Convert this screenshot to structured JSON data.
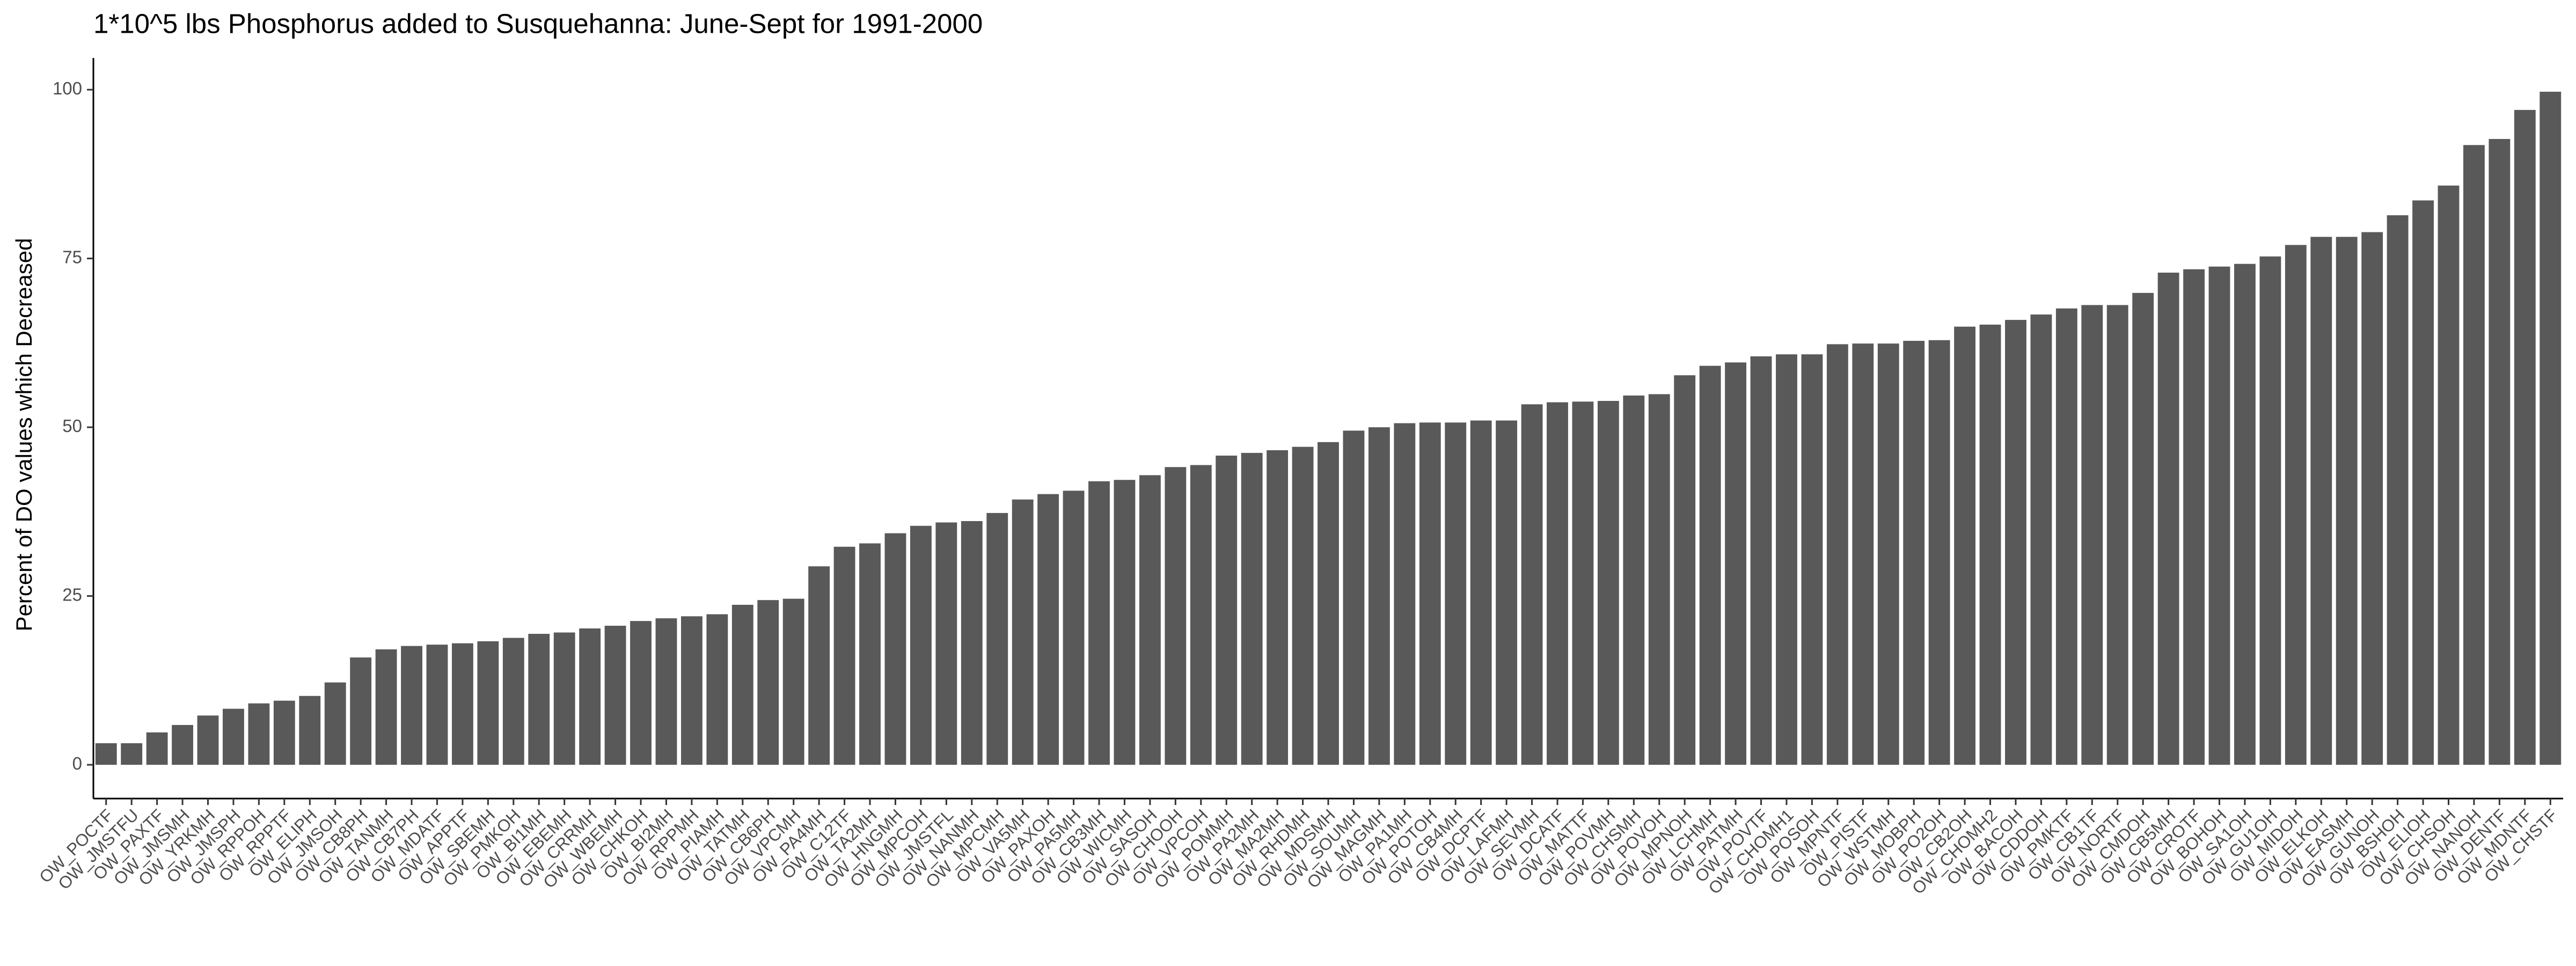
{
  "chart_data": {
    "type": "bar",
    "title": "1*10^5 lbs Phosphorus added to Susquehanna: June-Sept for 1991-2000",
    "y_label": "Percent of DO values which Decreased",
    "categories": [
      "OW_POCTF",
      "OW_JMSTFU",
      "OW_PAXTF",
      "OW_JMSMH",
      "OW_YRKMH",
      "OW_JMSPH",
      "OW_RPPOH",
      "OW_RPPTF",
      "OW_ELIPH",
      "OW_JMSOH",
      "OW_CB8PH",
      "OW_TANMH",
      "OW_CB7PH",
      "OW_MDATF",
      "OW_APPTF",
      "OW_SBEMH",
      "OW_PMKOH",
      "OW_BI1MH",
      "OW_EBEMH",
      "OW_CRRMH",
      "OW_WBEMH",
      "OW_CHKOH",
      "OW_BI2MH",
      "OW_RPPMH",
      "OW_PIAMH",
      "OW_TATMH",
      "OW_CB6PH",
      "OW_VPCMH",
      "OW_PA4MH",
      "OW_C12TF",
      "OW_TA2MH",
      "OW_HNGMH",
      "OW_MPCOH",
      "OW_JMSTFL",
      "OW_NANMH",
      "OW_MPCMH",
      "OW_VA5MH",
      "OW_PAXOH",
      "OW_PA5MH",
      "OW_CB3MH",
      "OW_WICMH",
      "OW_SASOH",
      "OW_CHOOH",
      "OW_VPCOH",
      "OW_POMMH",
      "OW_PA2MH",
      "OW_MA2MH",
      "OW_RHDMH",
      "OW_MDSMH",
      "OW_SOUMH",
      "OW_MAGMH",
      "OW_PA1MH",
      "OW_POTOH",
      "OW_CB4MH",
      "OW_DCPTF",
      "OW_LAFMH",
      "OW_SEVMH",
      "OW_DCATF",
      "OW_MATTF",
      "OW_POVMH",
      "OW_CHSMH",
      "OW_POVOH",
      "OW_MPNOH",
      "OW_LCHMH",
      "OW_PATMH",
      "OW_POVTF",
      "OW_CHOMH1",
      "OW_POSOH",
      "OW_MPNTF",
      "OW_PISTF",
      "OW_WSTMH",
      "OW_MOBPH",
      "OW_PO2OH",
      "OW_CB2OH",
      "OW_CHOMH2",
      "OW_BACOH",
      "OW_CDDOH",
      "OW_PMKTF",
      "OW_CB1TF",
      "OW_NORTF",
      "OW_CMDOH",
      "OW_CB5MH",
      "OW_CROTF",
      "OW_BOHOH",
      "OW_SA1OH",
      "OW_GU1OH",
      "OW_MIDOH",
      "OW_ELKOH",
      "OW_EASMH",
      "OW_GUNOH",
      "OW_BSHOH",
      "OW_ELIOH",
      "OW_CHSOH",
      "OW_NANOH",
      "OW_DENTF",
      "OW_MDNTF",
      "OW_CHSTF"
    ],
    "values": [
      3.2,
      3.2,
      4.8,
      5.9,
      7.3,
      8.3,
      9.1,
      9.5,
      10.2,
      12.2,
      15.9,
      17.1,
      17.6,
      17.8,
      18.0,
      18.3,
      18.8,
      19.4,
      19.6,
      20.2,
      20.6,
      21.3,
      21.7,
      22.0,
      22.3,
      23.7,
      24.4,
      24.6,
      29.4,
      32.3,
      32.8,
      34.3,
      35.4,
      35.9,
      36.1,
      37.3,
      39.3,
      40.1,
      40.6,
      42.0,
      42.2,
      42.9,
      44.1,
      44.4,
      45.8,
      46.2,
      46.6,
      47.1,
      47.8,
      49.5,
      50.0,
      50.6,
      50.7,
      50.7,
      51.0,
      51.0,
      53.4,
      53.7,
      53.8,
      53.9,
      54.7,
      54.9,
      57.7,
      59.1,
      59.6,
      60.5,
      60.8,
      60.8,
      62.3,
      62.4,
      62.4,
      62.8,
      62.9,
      64.9,
      65.2,
      65.9,
      66.7,
      67.6,
      68.1,
      68.1,
      69.9,
      72.9,
      73.4,
      73.8,
      74.2,
      75.3,
      77.0,
      78.2,
      78.2,
      78.9,
      81.4,
      83.6,
      85.8,
      91.8,
      92.7,
      97.0,
      99.7
    ],
    "color": "#595959",
    "ylim": [
      -5,
      104.7
    ],
    "yticks": [
      0,
      25,
      50,
      75,
      100
    ],
    "grid": false
  }
}
